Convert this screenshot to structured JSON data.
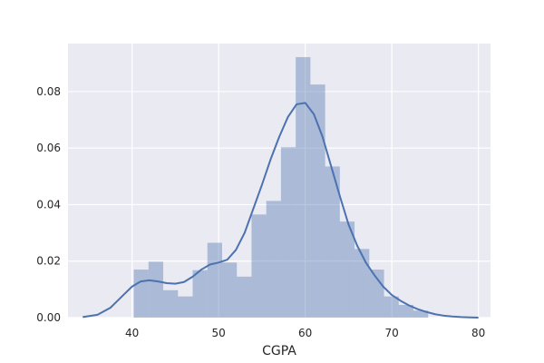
{
  "chart_data": {
    "type": "bar",
    "xlabel": "CGPA",
    "ylabel": "",
    "title": "",
    "xlim": [
      32.6,
      81.4
    ],
    "ylim": [
      0,
      0.097
    ],
    "x_ticks": [
      40,
      50,
      60,
      70,
      80
    ],
    "y_ticks": [
      0.0,
      0.02,
      0.04,
      0.06,
      0.08
    ],
    "x_tick_labels": [
      "40",
      "50",
      "60",
      "70",
      "80"
    ],
    "y_tick_labels": [
      "0.00",
      "0.02",
      "0.04",
      "0.06",
      "0.08"
    ],
    "grid": true,
    "legend": "none",
    "histogram": {
      "bin_edges": [
        40.2,
        41.9,
        43.6,
        45.3,
        47.0,
        48.7,
        50.4,
        52.1,
        53.8,
        55.5,
        57.2,
        58.9,
        60.6,
        62.3,
        64.0,
        65.7,
        67.4,
        69.1,
        70.8,
        72.5,
        74.2
      ],
      "densities": [
        0.017,
        0.0198,
        0.0097,
        0.0075,
        0.0168,
        0.0265,
        0.0195,
        0.0145,
        0.0365,
        0.0413,
        0.0603,
        0.0922,
        0.0825,
        0.0535,
        0.034,
        0.0243,
        0.017,
        0.0075,
        0.0045,
        0.0025
      ]
    },
    "kde": {
      "x": [
        34.3,
        36.0,
        37.5,
        39.0,
        40.0,
        41.0,
        42.0,
        43.0,
        44.0,
        45.0,
        46.0,
        47.0,
        48.0,
        49.0,
        50.0,
        51.0,
        52.0,
        53.0,
        54.0,
        55.0,
        56.0,
        57.0,
        58.0,
        59.0,
        60.0,
        61.0,
        62.0,
        63.0,
        64.0,
        65.0,
        66.0,
        67.0,
        68.0,
        69.0,
        70.0,
        71.0,
        72.0,
        73.0,
        74.0,
        75.0,
        76.0,
        77.0,
        78.0,
        79.0,
        80.0
      ],
      "y": [
        0.0002,
        0.001,
        0.0035,
        0.008,
        0.011,
        0.0128,
        0.0132,
        0.0128,
        0.0122,
        0.012,
        0.0126,
        0.0145,
        0.017,
        0.0188,
        0.0195,
        0.0205,
        0.024,
        0.03,
        0.0385,
        0.047,
        0.056,
        0.064,
        0.071,
        0.0755,
        0.076,
        0.072,
        0.064,
        0.0535,
        0.043,
        0.033,
        0.0255,
        0.0195,
        0.015,
        0.011,
        0.008,
        0.006,
        0.0043,
        0.003,
        0.002,
        0.0012,
        0.0007,
        0.0004,
        0.0002,
        0.0001,
        0.0
      ]
    },
    "colors": {
      "background": "#eaeaf2",
      "grid": "#ffffff",
      "bars": "#4c72b0",
      "bars_opacity": 0.4,
      "kde_line": "#4c72b0"
    }
  }
}
